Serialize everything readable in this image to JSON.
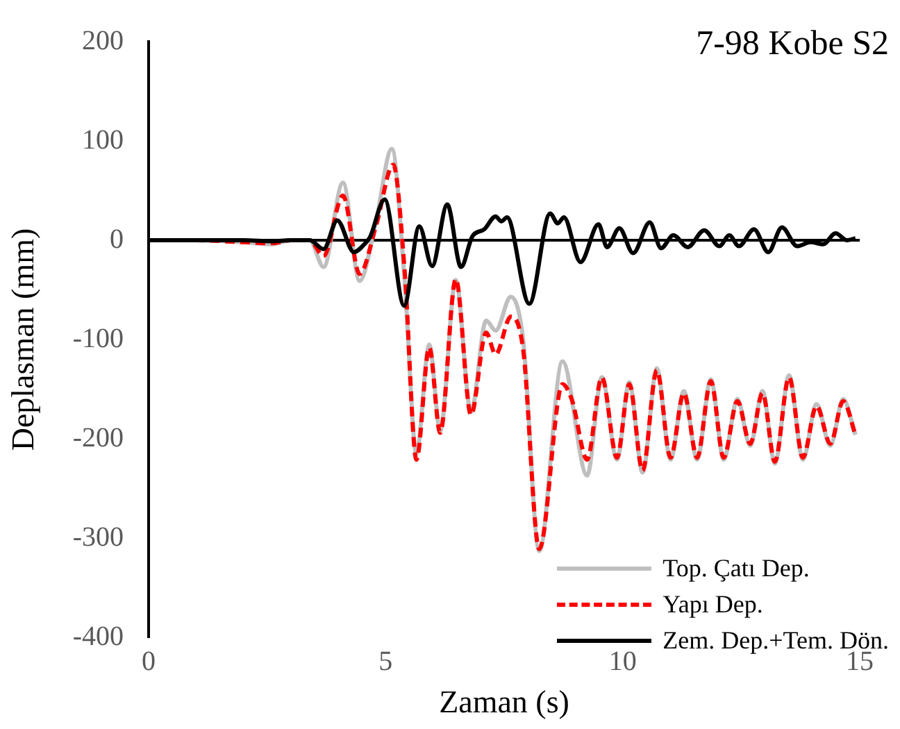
{
  "chart_data": {
    "type": "line",
    "title": "7-98 Kobe S2",
    "xlabel": "Zaman (s)",
    "ylabel": "Deplasman (mm)",
    "xlim": [
      0,
      15
    ],
    "xticks": [
      0,
      5,
      10,
      15
    ],
    "ylim": [
      -400,
      200
    ],
    "yticks": [
      -400,
      -300,
      -200,
      -100,
      0,
      100,
      200
    ],
    "grid": false,
    "legend": "bottom right",
    "marker": "none",
    "ref_lines": [
      {
        "axis": "y",
        "value": 0,
        "color": "#000000",
        "line_style": "solid"
      }
    ],
    "series": [
      {
        "name": "Top. Çatı Dep.",
        "color": "#bfbfbf",
        "line_style": "solid",
        "x": [
          0,
          1,
          2,
          2.6,
          3,
          3.4,
          3.69,
          4.1,
          4.45,
          4.8,
          5.13,
          5.4,
          5.65,
          5.92,
          6.15,
          6.48,
          6.8,
          7.12,
          7.32,
          7.64,
          7.9,
          8.24,
          8.73,
          9.25,
          9.56,
          9.88,
          10.14,
          10.42,
          10.72,
          11.01,
          11.29,
          11.57,
          11.86,
          12.13,
          12.42,
          12.69,
          12.95,
          13.21,
          13.51,
          13.8,
          14.09,
          14.38,
          14.65,
          14.91
        ],
        "values": [
          0,
          0,
          -2,
          -4,
          0,
          0,
          -27,
          58,
          -41,
          20,
          92,
          -40,
          -215,
          -105,
          -192,
          -40,
          -173,
          -81,
          -91,
          -57,
          -100,
          -313,
          -122,
          -237,
          -138,
          -221,
          -143,
          -234,
          -129,
          -221,
          -152,
          -221,
          -140,
          -221,
          -160,
          -207,
          -152,
          -225,
          -136,
          -221,
          -165,
          -207,
          -160,
          -196
        ]
      },
      {
        "name": "Yapı Dep.",
        "color": "#ff0000",
        "line_style": "dashed",
        "x": [
          0,
          1,
          2,
          2.6,
          3,
          3.4,
          3.69,
          4.1,
          4.45,
          4.8,
          5.16,
          5.4,
          5.65,
          5.92,
          6.15,
          6.48,
          6.8,
          7.12,
          7.32,
          7.64,
          7.9,
          8.24,
          8.73,
          8.93,
          9.25,
          9.56,
          9.88,
          10.14,
          10.42,
          10.72,
          11.01,
          11.29,
          11.57,
          11.86,
          12.13,
          12.42,
          12.69,
          12.95,
          13.21,
          13.51,
          13.8,
          14.09,
          14.38,
          14.65,
          14.91
        ],
        "values": [
          0,
          0,
          -2,
          -3,
          0,
          0,
          -16,
          45,
          -34,
          15,
          76,
          -30,
          -221,
          -108,
          -194,
          -39,
          -176,
          -93,
          -115,
          -77,
          -110,
          -311,
          -145,
          -161,
          -221,
          -138,
          -219,
          -145,
          -232,
          -131,
          -219,
          -154,
          -219,
          -142,
          -219,
          -162,
          -205,
          -154,
          -223,
          -138,
          -219,
          -167,
          -205,
          -162,
          -196
        ]
      },
      {
        "name": "Zem. Dep.+Tem. Dön.",
        "color": "#000000",
        "line_style": "solid",
        "x": [
          0,
          1,
          2,
          2.6,
          3,
          3.4,
          3.69,
          3.98,
          4.33,
          4.57,
          4.67,
          4.98,
          5.39,
          5.71,
          5.98,
          6.3,
          6.59,
          6.83,
          7.08,
          7.32,
          7.44,
          7.56,
          8.03,
          8.47,
          8.63,
          8.76,
          9.11,
          9.49,
          9.67,
          9.93,
          10.22,
          10.57,
          10.81,
          11.07,
          11.37,
          11.72,
          12.04,
          12.25,
          12.45,
          12.77,
          13.07,
          13.36,
          13.68,
          13.96,
          14.23,
          14.49,
          14.73,
          14.91
        ],
        "values": [
          0,
          0,
          0,
          -1,
          0,
          0,
          -9,
          20,
          -12,
          -3,
          3,
          41,
          -66,
          14,
          -26,
          36,
          -27,
          4,
          11,
          24,
          19,
          23,
          -64,
          27,
          17,
          23,
          -22,
          16,
          -7,
          12,
          -13,
          18,
          -8,
          5,
          -7,
          10,
          -6,
          5,
          -6,
          11,
          -12,
          13,
          -6,
          -2,
          -4,
          7,
          0,
          2
        ]
      }
    ]
  }
}
